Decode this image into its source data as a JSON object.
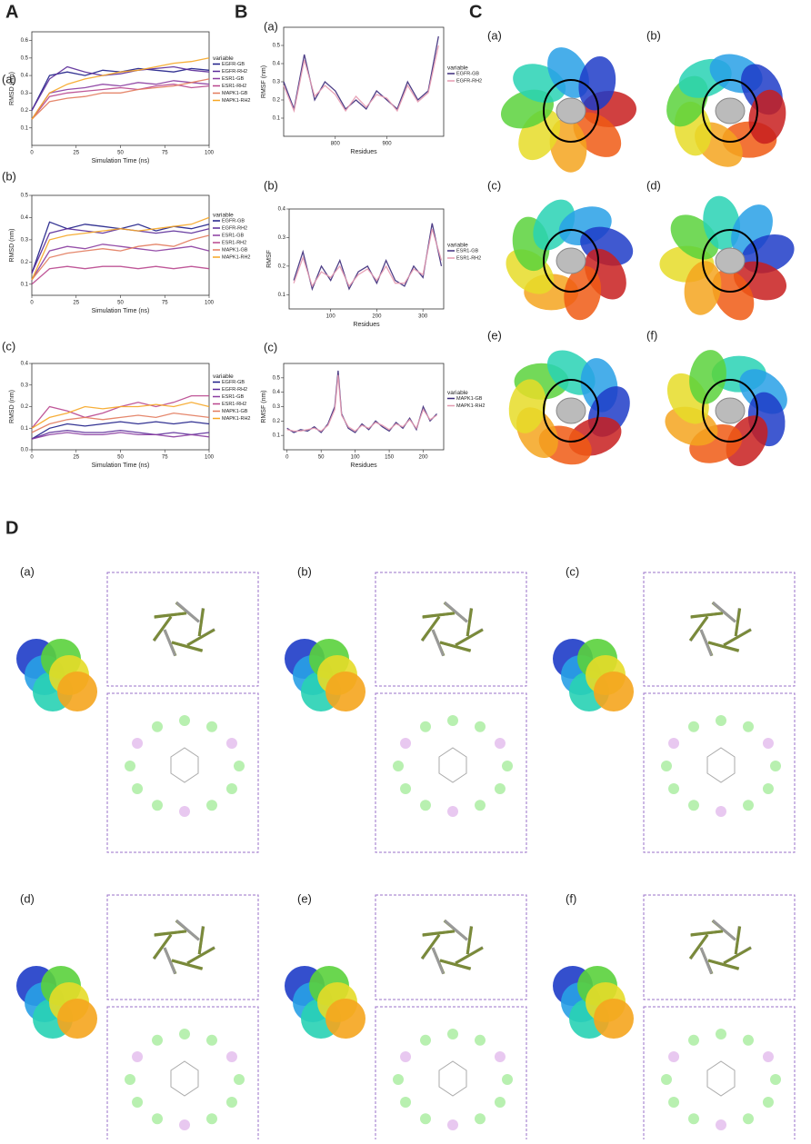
{
  "panels": {
    "A": "A",
    "B": "B",
    "C": "C",
    "D": "D",
    "C_labels": [
      "(a)",
      "(b)",
      "(c)",
      "(d)",
      "(e)",
      "(f)"
    ],
    "D_labels": [
      "(a)",
      "(b)",
      "(c)",
      "(d)",
      "(e)",
      "(f)"
    ]
  },
  "chart_data": [
    {
      "type": "line",
      "label": "(a)",
      "x_label": "Simulation Time (ns)",
      "y_label": "RMSD (nm)",
      "legend_title": "variable",
      "x": [
        0,
        10,
        20,
        30,
        40,
        50,
        60,
        70,
        80,
        90,
        100
      ],
      "xlim": [
        0,
        100
      ],
      "xticks": [
        0,
        25,
        50,
        75,
        100
      ],
      "ylim": [
        0,
        0.65
      ],
      "yticks": [
        0.1,
        0.2,
        0.3,
        0.4,
        0.5,
        0.6
      ],
      "series": [
        {
          "name": "EGFR-GB",
          "color": "#1c1c86",
          "values": [
            0.2,
            0.4,
            0.42,
            0.4,
            0.43,
            0.42,
            0.44,
            0.43,
            0.42,
            0.44,
            0.43
          ]
        },
        {
          "name": "EGFR-RH2",
          "color": "#5a2a98",
          "values": [
            0.2,
            0.38,
            0.45,
            0.42,
            0.4,
            0.41,
            0.43,
            0.44,
            0.45,
            0.43,
            0.42
          ]
        },
        {
          "name": "ESR1-GB",
          "color": "#8a3ca0",
          "values": [
            0.15,
            0.3,
            0.32,
            0.33,
            0.35,
            0.34,
            0.36,
            0.35,
            0.37,
            0.36,
            0.35
          ]
        },
        {
          "name": "ESR1-RH2",
          "color": "#b8458d",
          "values": [
            0.15,
            0.28,
            0.3,
            0.31,
            0.32,
            0.33,
            0.32,
            0.34,
            0.35,
            0.33,
            0.34
          ]
        },
        {
          "name": "MAPK1-GB",
          "color": "#e27a5c",
          "values": [
            0.15,
            0.25,
            0.27,
            0.28,
            0.3,
            0.3,
            0.32,
            0.33,
            0.34,
            0.36,
            0.38
          ]
        },
        {
          "name": "MAPK1-RH2",
          "color": "#f6a623",
          "values": [
            0.15,
            0.3,
            0.35,
            0.38,
            0.4,
            0.42,
            0.43,
            0.45,
            0.47,
            0.48,
            0.5
          ]
        }
      ]
    },
    {
      "type": "line",
      "label": "(b)",
      "x_label": "Simulation Time (ns)",
      "y_label": "RMSD (nm)",
      "legend_title": "variable",
      "x": [
        0,
        10,
        20,
        30,
        40,
        50,
        60,
        70,
        80,
        90,
        100
      ],
      "xlim": [
        0,
        100
      ],
      "xticks": [
        0,
        25,
        50,
        75,
        100
      ],
      "ylim": [
        0.05,
        0.5
      ],
      "yticks": [
        0.1,
        0.2,
        0.3,
        0.4,
        0.5
      ],
      "series": [
        {
          "name": "EGFR-GB",
          "color": "#1c1c86",
          "values": [
            0.15,
            0.38,
            0.35,
            0.37,
            0.36,
            0.35,
            0.37,
            0.34,
            0.36,
            0.35,
            0.37
          ]
        },
        {
          "name": "EGFR-RH2",
          "color": "#5a2a98",
          "values": [
            0.15,
            0.33,
            0.35,
            0.34,
            0.33,
            0.35,
            0.34,
            0.33,
            0.34,
            0.33,
            0.35
          ]
        },
        {
          "name": "ESR1-GB",
          "color": "#8a3ca0",
          "values": [
            0.12,
            0.25,
            0.27,
            0.26,
            0.28,
            0.27,
            0.26,
            0.25,
            0.26,
            0.27,
            0.25
          ]
        },
        {
          "name": "ESR1-RH2",
          "color": "#b8458d",
          "values": [
            0.1,
            0.17,
            0.18,
            0.17,
            0.18,
            0.18,
            0.17,
            0.18,
            0.17,
            0.18,
            0.17
          ]
        },
        {
          "name": "MAPK1-GB",
          "color": "#e27a5c",
          "values": [
            0.12,
            0.22,
            0.24,
            0.25,
            0.26,
            0.25,
            0.27,
            0.28,
            0.27,
            0.3,
            0.32
          ]
        },
        {
          "name": "MAPK1-RH2",
          "color": "#f6a623",
          "values": [
            0.12,
            0.3,
            0.32,
            0.33,
            0.34,
            0.35,
            0.34,
            0.35,
            0.36,
            0.37,
            0.4
          ]
        }
      ]
    },
    {
      "type": "line",
      "label": "(c)",
      "x_label": "Simulation Time (ns)",
      "y_label": "RMSD (nm)",
      "legend_title": "variable",
      "x": [
        0,
        10,
        20,
        30,
        40,
        50,
        60,
        70,
        80,
        90,
        100
      ],
      "xlim": [
        0,
        100
      ],
      "xticks": [
        0,
        25,
        50,
        75,
        100
      ],
      "ylim": [
        0,
        0.4
      ],
      "yticks": [
        {
          "value": 0,
          "label": "0.0"
        },
        0.1,
        0.2,
        0.3,
        0.4
      ],
      "series": [
        {
          "name": "EGFR-GB",
          "color": "#1c1c86",
          "values": [
            0.05,
            0.1,
            0.12,
            0.11,
            0.12,
            0.13,
            0.12,
            0.13,
            0.12,
            0.13,
            0.12
          ]
        },
        {
          "name": "EGFR-RH2",
          "color": "#5a2a98",
          "values": [
            0.05,
            0.08,
            0.09,
            0.08,
            0.08,
            0.09,
            0.08,
            0.07,
            0.08,
            0.07,
            0.08
          ]
        },
        {
          "name": "ESR1-GB",
          "color": "#8a3ca0",
          "values": [
            0.05,
            0.07,
            0.08,
            0.07,
            0.07,
            0.08,
            0.07,
            0.07,
            0.06,
            0.07,
            0.06
          ]
        },
        {
          "name": "ESR1-RH2",
          "color": "#b8458d",
          "values": [
            0.1,
            0.2,
            0.18,
            0.15,
            0.17,
            0.2,
            0.22,
            0.2,
            0.22,
            0.25,
            0.25
          ]
        },
        {
          "name": "MAPK1-GB",
          "color": "#e27a5c",
          "values": [
            0.08,
            0.12,
            0.14,
            0.15,
            0.14,
            0.15,
            0.16,
            0.15,
            0.17,
            0.16,
            0.15
          ]
        },
        {
          "name": "MAPK1-RH2",
          "color": "#f6a623",
          "values": [
            0.1,
            0.15,
            0.17,
            0.2,
            0.19,
            0.2,
            0.2,
            0.21,
            0.2,
            0.22,
            0.2
          ]
        }
      ]
    },
    {
      "type": "line",
      "label": "(a)",
      "x_label": "Residues",
      "y_label": "RMSF (nm)",
      "legend_title": "variable",
      "x": [
        700,
        720,
        740,
        760,
        780,
        800,
        820,
        840,
        860,
        880,
        900,
        920,
        940,
        960,
        980,
        1000
      ],
      "xlim": [
        700,
        1010
      ],
      "xticks": [
        800,
        900
      ],
      "ylim": [
        0,
        0.6
      ],
      "yticks": [
        0.1,
        0.2,
        0.3,
        0.4,
        0.5
      ],
      "series": [
        {
          "name": "EGFR-GB",
          "color": "#3b2a7a",
          "values": [
            0.3,
            0.15,
            0.45,
            0.2,
            0.3,
            0.25,
            0.15,
            0.2,
            0.15,
            0.25,
            0.2,
            0.15,
            0.3,
            0.2,
            0.25,
            0.55
          ]
        },
        {
          "name": "EGFR-RH2",
          "color": "#e59ab0",
          "values": [
            0.28,
            0.14,
            0.42,
            0.22,
            0.28,
            0.23,
            0.14,
            0.22,
            0.16,
            0.23,
            0.21,
            0.14,
            0.28,
            0.19,
            0.24,
            0.5
          ]
        }
      ]
    },
    {
      "type": "line",
      "label": "(b)",
      "x_label": "Residues",
      "y_label": "RMSF",
      "legend_title": "variable",
      "x": [
        20,
        40,
        60,
        80,
        100,
        120,
        140,
        160,
        180,
        200,
        220,
        240,
        260,
        280,
        300,
        320,
        340
      ],
      "xlim": [
        10,
        345
      ],
      "xticks": [
        100,
        200,
        300
      ],
      "ylim": [
        0.05,
        0.4
      ],
      "yticks": [
        0.1,
        0.2,
        0.3,
        0.4
      ],
      "series": [
        {
          "name": "ESR1-GB",
          "color": "#3b2a7a",
          "values": [
            0.15,
            0.25,
            0.12,
            0.2,
            0.15,
            0.22,
            0.12,
            0.18,
            0.2,
            0.14,
            0.22,
            0.15,
            0.13,
            0.2,
            0.16,
            0.35,
            0.2
          ]
        },
        {
          "name": "ESR1-RH2",
          "color": "#e59ab0",
          "values": [
            0.14,
            0.23,
            0.13,
            0.18,
            0.16,
            0.2,
            0.13,
            0.17,
            0.19,
            0.15,
            0.2,
            0.14,
            0.14,
            0.19,
            0.17,
            0.33,
            0.22
          ]
        }
      ]
    },
    {
      "type": "line",
      "label": "(c)",
      "x_label": "Residues",
      "y_label": "RMSF (nm)",
      "legend_title": "variable",
      "x": [
        0,
        10,
        20,
        30,
        40,
        50,
        60,
        70,
        75,
        80,
        90,
        100,
        110,
        120,
        130,
        140,
        150,
        160,
        170,
        180,
        190,
        200,
        210,
        220
      ],
      "xlim": [
        -5,
        230
      ],
      "xticks": [
        0,
        50,
        100,
        150,
        200
      ],
      "ylim": [
        0,
        0.6
      ],
      "yticks": [
        0.1,
        0.2,
        0.3,
        0.4,
        0.5
      ],
      "series": [
        {
          "name": "MAPK1-GB",
          "color": "#3b2a7a",
          "values": [
            0.15,
            0.12,
            0.14,
            0.13,
            0.16,
            0.12,
            0.18,
            0.3,
            0.55,
            0.25,
            0.15,
            0.12,
            0.18,
            0.14,
            0.2,
            0.16,
            0.13,
            0.19,
            0.15,
            0.22,
            0.14,
            0.3,
            0.2,
            0.25
          ]
        },
        {
          "name": "MAPK1-RH2",
          "color": "#e59ab0",
          "values": [
            0.14,
            0.13,
            0.13,
            0.14,
            0.15,
            0.13,
            0.17,
            0.28,
            0.52,
            0.24,
            0.16,
            0.13,
            0.17,
            0.15,
            0.19,
            0.17,
            0.14,
            0.18,
            0.16,
            0.21,
            0.15,
            0.28,
            0.21,
            0.24
          ]
        }
      ]
    }
  ]
}
